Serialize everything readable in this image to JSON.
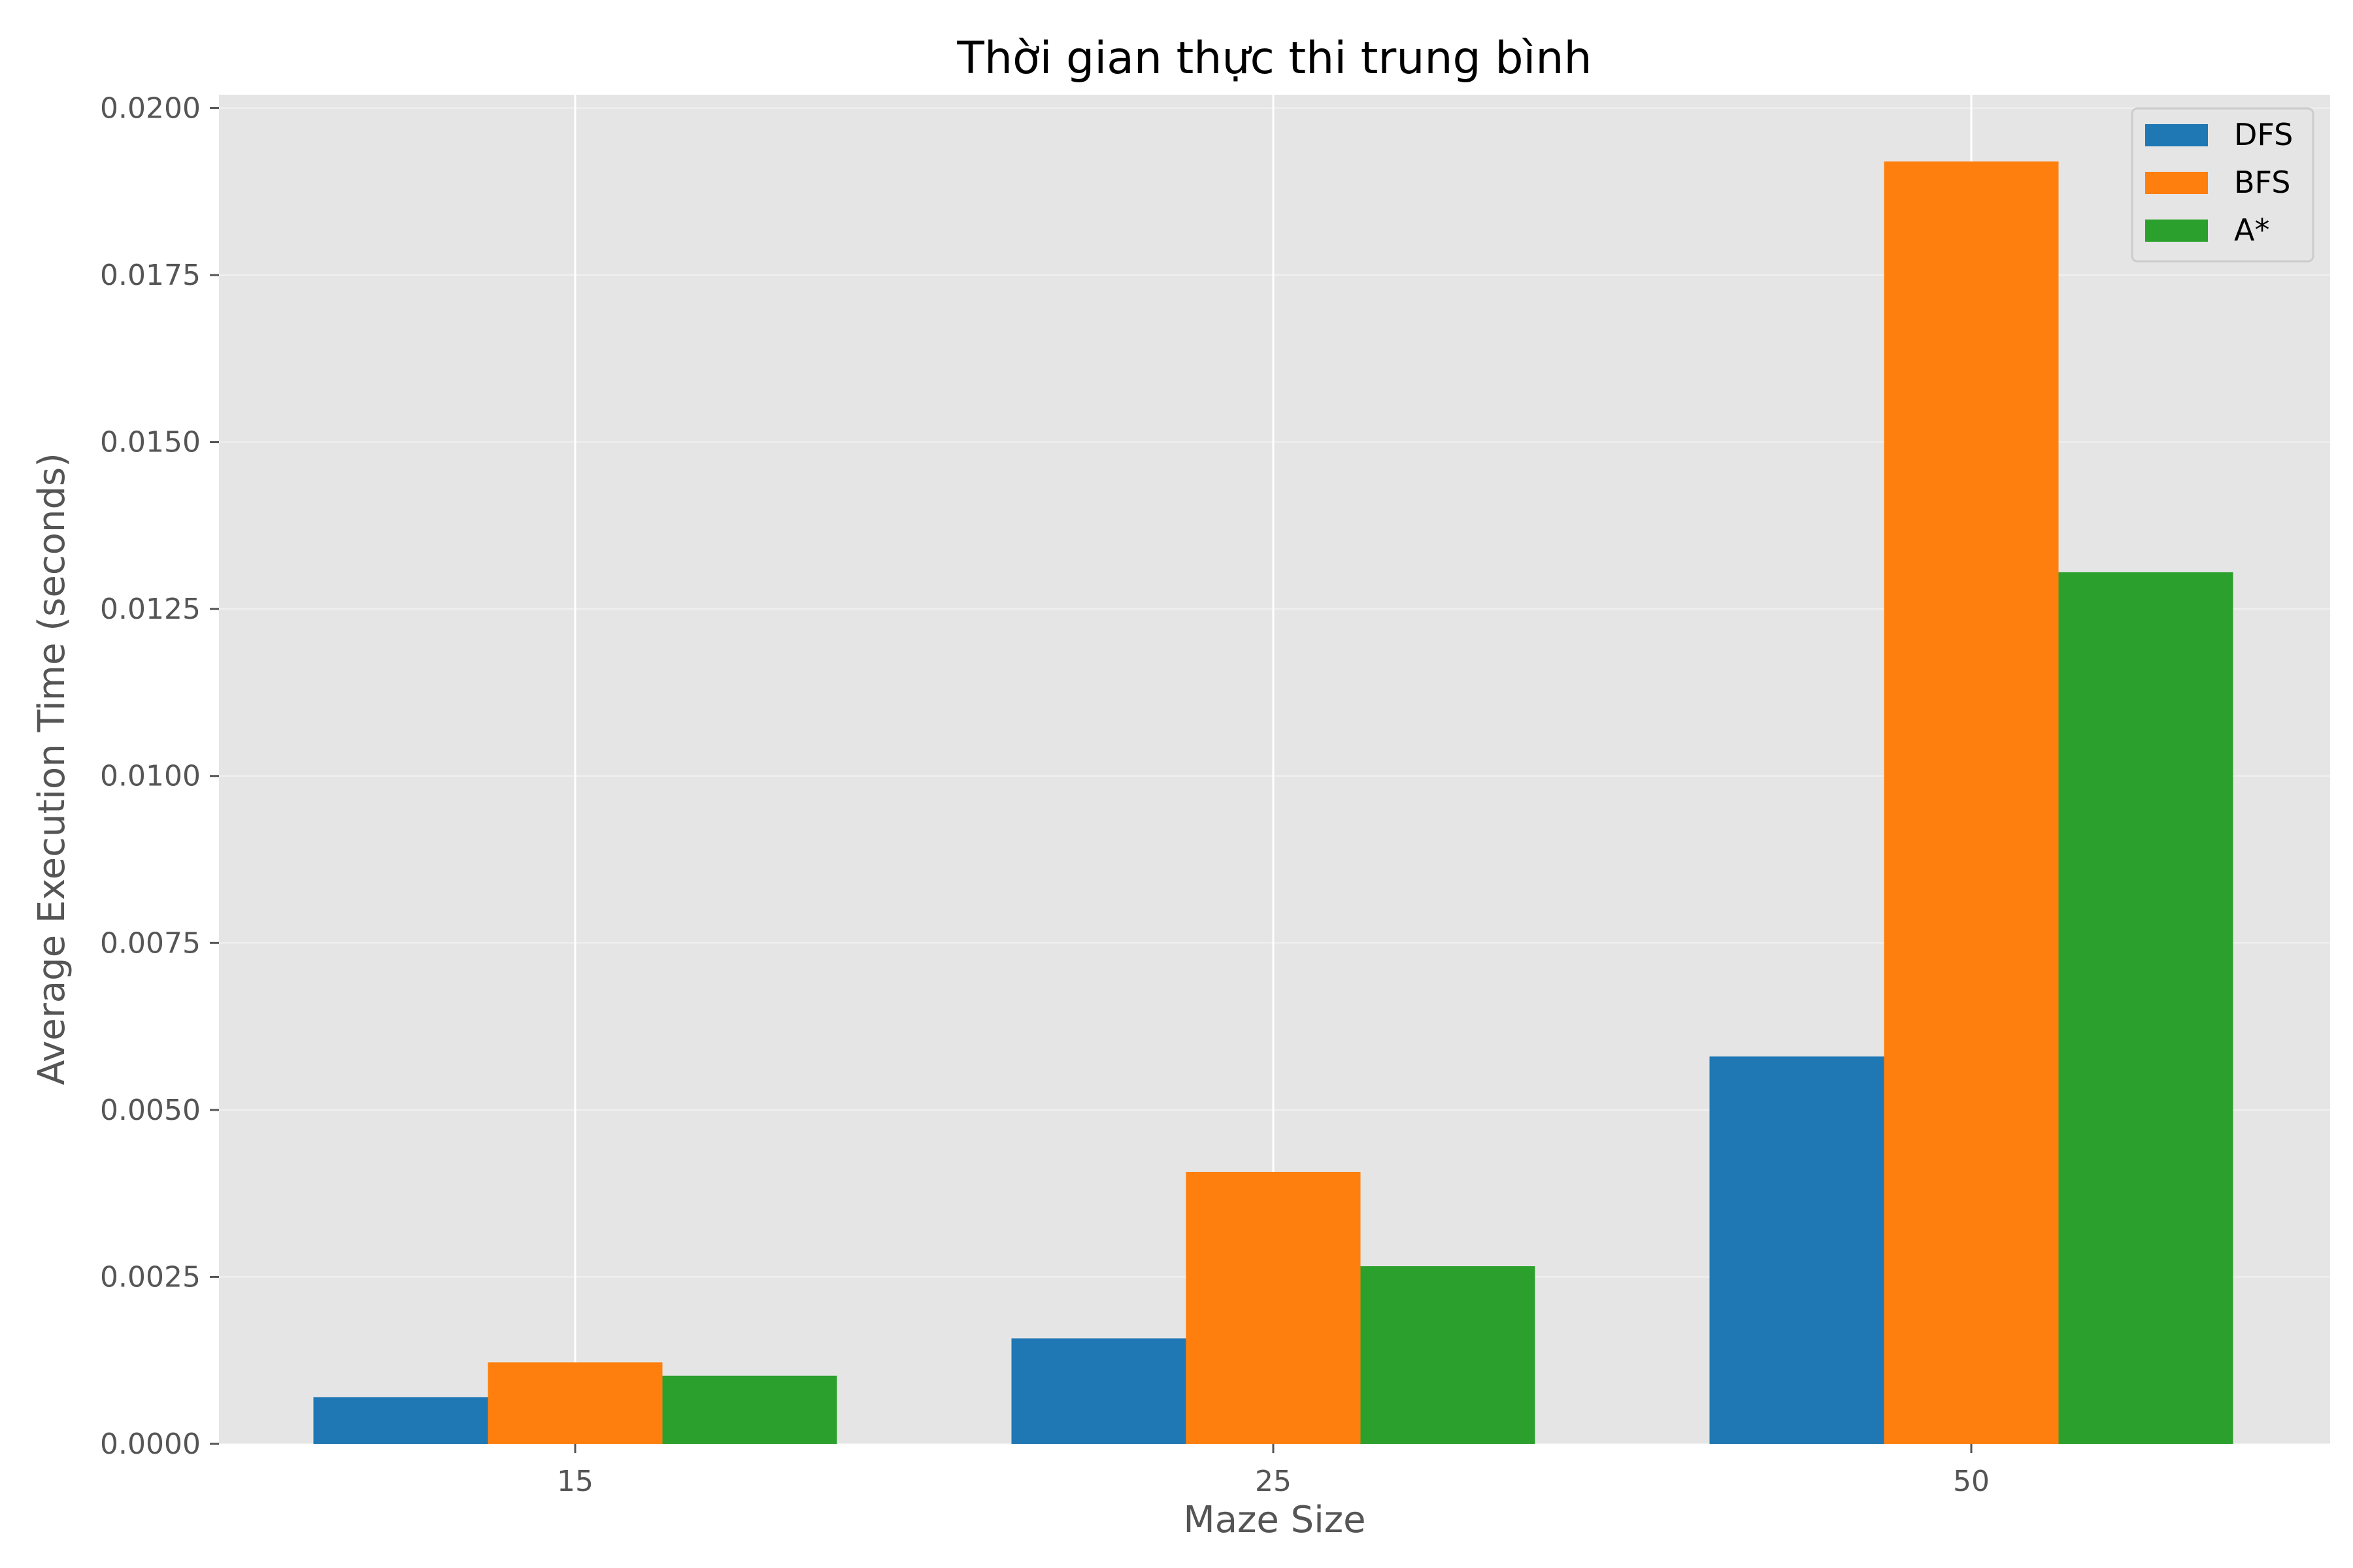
{
  "chart_data": {
    "type": "bar",
    "title": "Thời gian thực thi trung bình",
    "xlabel": "Maze Size",
    "ylabel": "Average Execution Time (seconds)",
    "categories": [
      "15",
      "25",
      "50"
    ],
    "series": [
      {
        "name": "DFS",
        "color": "#1f77b4",
        "values": [
          0.0007,
          0.00158,
          0.0058
        ]
      },
      {
        "name": "BFS",
        "color": "#ff7f0e",
        "values": [
          0.00122,
          0.00407,
          0.0192
        ]
      },
      {
        "name": "A*",
        "color": "#2ca02c",
        "values": [
          0.00102,
          0.00266,
          0.01305
        ]
      }
    ],
    "ylim": [
      0,
      0.0202
    ],
    "yticks": [
      "0.0000",
      "0.0025",
      "0.0050",
      "0.0075",
      "0.0100",
      "0.0125",
      "0.0150",
      "0.0175",
      "0.0200"
    ],
    "grid": true,
    "legend_position": "top-right",
    "background_color": "#e5e5e5"
  }
}
